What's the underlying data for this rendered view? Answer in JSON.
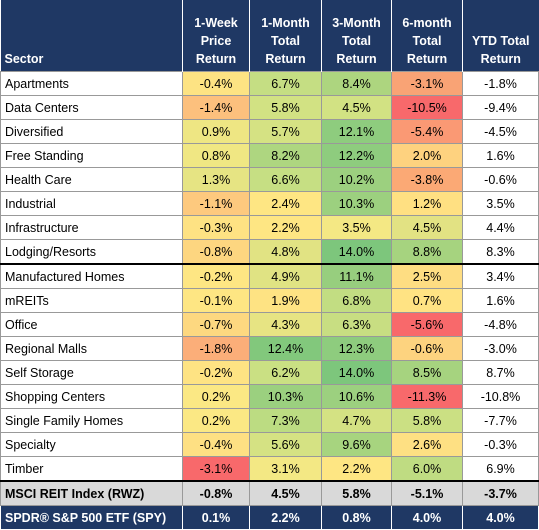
{
  "table": {
    "headers": [
      [
        "Sector"
      ],
      [
        "1-Week",
        "Price",
        "Return"
      ],
      [
        "1-Month",
        "Total",
        "Return"
      ],
      [
        "3-Month",
        "Total",
        "Return"
      ],
      [
        "6-month",
        "Total",
        "Return"
      ],
      [
        "YTD Total",
        "Return"
      ]
    ],
    "rows": [
      {
        "sector": "Apartments",
        "values": [
          "-0.4%",
          "6.7%",
          "8.4%",
          "-3.1%",
          "-1.8%"
        ],
        "colors": [
          "#fde383",
          "#c5de83",
          "#add57f",
          "#f9a375",
          "#ffffff"
        ]
      },
      {
        "sector": "Data Centers",
        "values": [
          "-1.4%",
          "5.8%",
          "4.5%",
          "-10.5%",
          "-9.4%"
        ],
        "colors": [
          "#fcc07d",
          "#d2e283",
          "#d2e283",
          "#f8696b",
          "#ffffff"
        ]
      },
      {
        "sector": "Diversified",
        "values": [
          "0.9%",
          "5.7%",
          "12.1%",
          "-5.4%",
          "-4.5%"
        ],
        "colors": [
          "#eee683",
          "#d5e283",
          "#8ecc7e",
          "#fa9974",
          "#ffffff"
        ]
      },
      {
        "sector": "Free Standing",
        "values": [
          "0.8%",
          "8.2%",
          "12.2%",
          "2.0%",
          "1.6%"
        ],
        "colors": [
          "#f0e783",
          "#aed680",
          "#8ecc7e",
          "#fed27f",
          "#ffffff"
        ]
      },
      {
        "sector": "Health Care",
        "values": [
          "1.3%",
          "6.6%",
          "10.2%",
          "-3.8%",
          "-0.6%"
        ],
        "colors": [
          "#e6e483",
          "#c6df83",
          "#9cd07f",
          "#fba975",
          "#ffffff"
        ]
      },
      {
        "sector": "Industrial",
        "values": [
          "-1.1%",
          "2.4%",
          "10.3%",
          "1.2%",
          "3.5%"
        ],
        "colors": [
          "#fdc97e",
          "#fee683",
          "#9cd07f",
          "#ffe082",
          "#ffffff"
        ]
      },
      {
        "sector": "Infrastructure",
        "values": [
          "-0.3%",
          "2.2%",
          "3.5%",
          "4.5%",
          "4.4%"
        ],
        "colors": [
          "#fee283",
          "#fee683",
          "#f4e884",
          "#e2e283",
          "#ffffff"
        ]
      },
      {
        "sector": "Lodging/Resorts",
        "values": [
          "-0.8%",
          "4.8%",
          "14.0%",
          "8.8%",
          "8.3%"
        ],
        "colors": [
          "#fdd680",
          "#e1e383",
          "#7dc67c",
          "#a6d37f",
          "#ffffff"
        ]
      },
      {
        "sector": "Manufactured Homes",
        "values": [
          "-0.2%",
          "4.9%",
          "11.1%",
          "2.5%",
          "3.4%"
        ],
        "colors": [
          "#fee683",
          "#e0e383",
          "#97ce7e",
          "#fedd82",
          "#ffffff"
        ]
      },
      {
        "sector": "mREITs",
        "values": [
          "-0.1%",
          "1.9%",
          "6.8%",
          "0.7%",
          "1.6%"
        ],
        "colors": [
          "#fee683",
          "#fee383",
          "#c2dd82",
          "#ffe383",
          "#ffffff"
        ]
      },
      {
        "sector": "Office",
        "values": [
          "-0.7%",
          "4.3%",
          "6.3%",
          "-5.6%",
          "-4.8%"
        ],
        "colors": [
          "#fdd880",
          "#e7e483",
          "#c8de82",
          "#f8696b",
          "#ffffff"
        ]
      },
      {
        "sector": "Regional Malls",
        "values": [
          "-1.8%",
          "12.4%",
          "12.3%",
          "-0.6%",
          "-3.0%"
        ],
        "colors": [
          "#fbae79",
          "#82c87c",
          "#8ecc7e",
          "#fdd37f",
          "#ffffff"
        ]
      },
      {
        "sector": "Self Storage",
        "values": [
          "-0.2%",
          "6.2%",
          "14.0%",
          "8.5%",
          "8.7%"
        ],
        "colors": [
          "#fee383",
          "#cae083",
          "#7dc67c",
          "#a6d37f",
          "#ffffff"
        ]
      },
      {
        "sector": "Shopping Centers",
        "values": [
          "0.2%",
          "10.3%",
          "10.6%",
          "-11.3%",
          "-10.8%"
        ],
        "colors": [
          "#fbe884",
          "#9bd07f",
          "#9cd07f",
          "#f8696b",
          "#ffffff"
        ]
      },
      {
        "sector": "Single Family Homes",
        "values": [
          "0.2%",
          "7.3%",
          "4.7%",
          "5.8%",
          "-7.7%"
        ],
        "colors": [
          "#fbe884",
          "#bcdc82",
          "#d4e283",
          "#cbe083",
          "#ffffff"
        ]
      },
      {
        "sector": "Specialty",
        "values": [
          "-0.4%",
          "5.6%",
          "9.6%",
          "2.6%",
          "-0.3%"
        ],
        "colors": [
          "#fee083",
          "#d5e283",
          "#a7d47f",
          "#fee083",
          "#ffffff"
        ]
      },
      {
        "sector": "Timber",
        "values": [
          "-3.1%",
          "3.1%",
          "2.2%",
          "6.0%",
          "6.9%"
        ],
        "colors": [
          "#f8696b",
          "#f3e884",
          "#fee683",
          "#bfdc82",
          "#ffffff"
        ]
      }
    ],
    "msci": {
      "sector": "MSCI REIT Index (RWZ)",
      "values": [
        "-0.8%",
        "4.5%",
        "5.8%",
        "-5.1%",
        "-3.7%"
      ]
    },
    "spy": {
      "sector": "SPDR® S&P 500 ETF (SPY)",
      "values": [
        "0.1%",
        "2.2%",
        "0.8%",
        "4.0%",
        "4.0%"
      ]
    }
  }
}
